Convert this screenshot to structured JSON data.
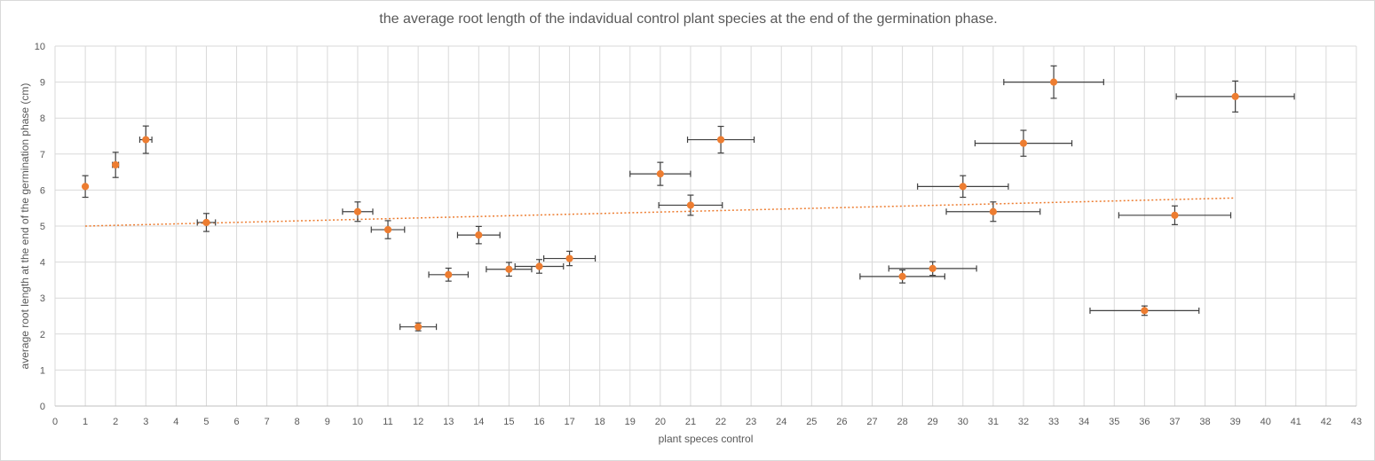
{
  "chart_data": {
    "type": "scatter",
    "title": "the average root length of the indavidual control plant species at the end of the germination phase.",
    "xlabel": "plant speces control",
    "ylabel": "average root length at the end of the germination phase (cm)",
    "xlim": [
      0,
      43
    ],
    "ylim": [
      0,
      10
    ],
    "x_ticks": [
      "0",
      "1",
      "2",
      "3",
      "4",
      "5",
      "6",
      "7",
      "8",
      "9",
      "10",
      "11",
      "12",
      "13",
      "14",
      "15",
      "16",
      "17",
      "18",
      "19",
      "20",
      "21",
      "22",
      "23",
      "24",
      "25",
      "26",
      "27",
      "28",
      "29",
      "30",
      "31",
      "32",
      "33",
      "34",
      "35",
      "36",
      "37",
      "38",
      "39",
      "40",
      "41",
      "42",
      "43"
    ],
    "y_ticks": [
      "0",
      "1",
      "2",
      "3",
      "4",
      "5",
      "6",
      "7",
      "8",
      "9",
      "10"
    ],
    "grid": true,
    "marker_color": "#ED7D31",
    "errorbar_color": "#404040",
    "trendline": {
      "type": "linear",
      "color": "#ED7D31",
      "style": "dotted",
      "x_start": 1,
      "y_start": 5.0,
      "x_end": 39,
      "y_end": 5.78
    },
    "points": [
      {
        "x": 1,
        "y": 6.1,
        "xerr": 0,
        "yerr": 0.3
      },
      {
        "x": 2,
        "y": 6.7,
        "xerr": 0.1,
        "yerr": 0.35
      },
      {
        "x": 3,
        "y": 7.4,
        "xerr": 0.2,
        "yerr": 0.38
      },
      {
        "x": 5,
        "y": 5.1,
        "xerr": 0.3,
        "yerr": 0.25
      },
      {
        "x": 10,
        "y": 5.4,
        "xerr": 0.5,
        "yerr": 0.27
      },
      {
        "x": 11,
        "y": 4.9,
        "xerr": 0.55,
        "yerr": 0.25
      },
      {
        "x": 12,
        "y": 2.2,
        "xerr": 0.6,
        "yerr": 0.11
      },
      {
        "x": 13,
        "y": 3.65,
        "xerr": 0.65,
        "yerr": 0.18
      },
      {
        "x": 14,
        "y": 4.75,
        "xerr": 0.7,
        "yerr": 0.24
      },
      {
        "x": 15,
        "y": 3.8,
        "xerr": 0.75,
        "yerr": 0.19
      },
      {
        "x": 16,
        "y": 3.88,
        "xerr": 0.8,
        "yerr": 0.19
      },
      {
        "x": 17,
        "y": 4.1,
        "xerr": 0.85,
        "yerr": 0.2
      },
      {
        "x": 20,
        "y": 6.45,
        "xerr": 1.0,
        "yerr": 0.32
      },
      {
        "x": 21,
        "y": 5.58,
        "xerr": 1.05,
        "yerr": 0.28
      },
      {
        "x": 22,
        "y": 7.4,
        "xerr": 1.1,
        "yerr": 0.37
      },
      {
        "x": 28,
        "y": 3.6,
        "xerr": 1.4,
        "yerr": 0.18
      },
      {
        "x": 29,
        "y": 3.82,
        "xerr": 1.45,
        "yerr": 0.19
      },
      {
        "x": 30,
        "y": 6.1,
        "xerr": 1.5,
        "yerr": 0.3
      },
      {
        "x": 31,
        "y": 5.4,
        "xerr": 1.55,
        "yerr": 0.27
      },
      {
        "x": 32,
        "y": 7.3,
        "xerr": 1.6,
        "yerr": 0.36
      },
      {
        "x": 33,
        "y": 9.0,
        "xerr": 1.65,
        "yerr": 0.45
      },
      {
        "x": 36,
        "y": 2.65,
        "xerr": 1.8,
        "yerr": 0.13
      },
      {
        "x": 37,
        "y": 5.3,
        "xerr": 1.85,
        "yerr": 0.26
      },
      {
        "x": 39,
        "y": 8.6,
        "xerr": 1.95,
        "yerr": 0.43
      }
    ]
  }
}
